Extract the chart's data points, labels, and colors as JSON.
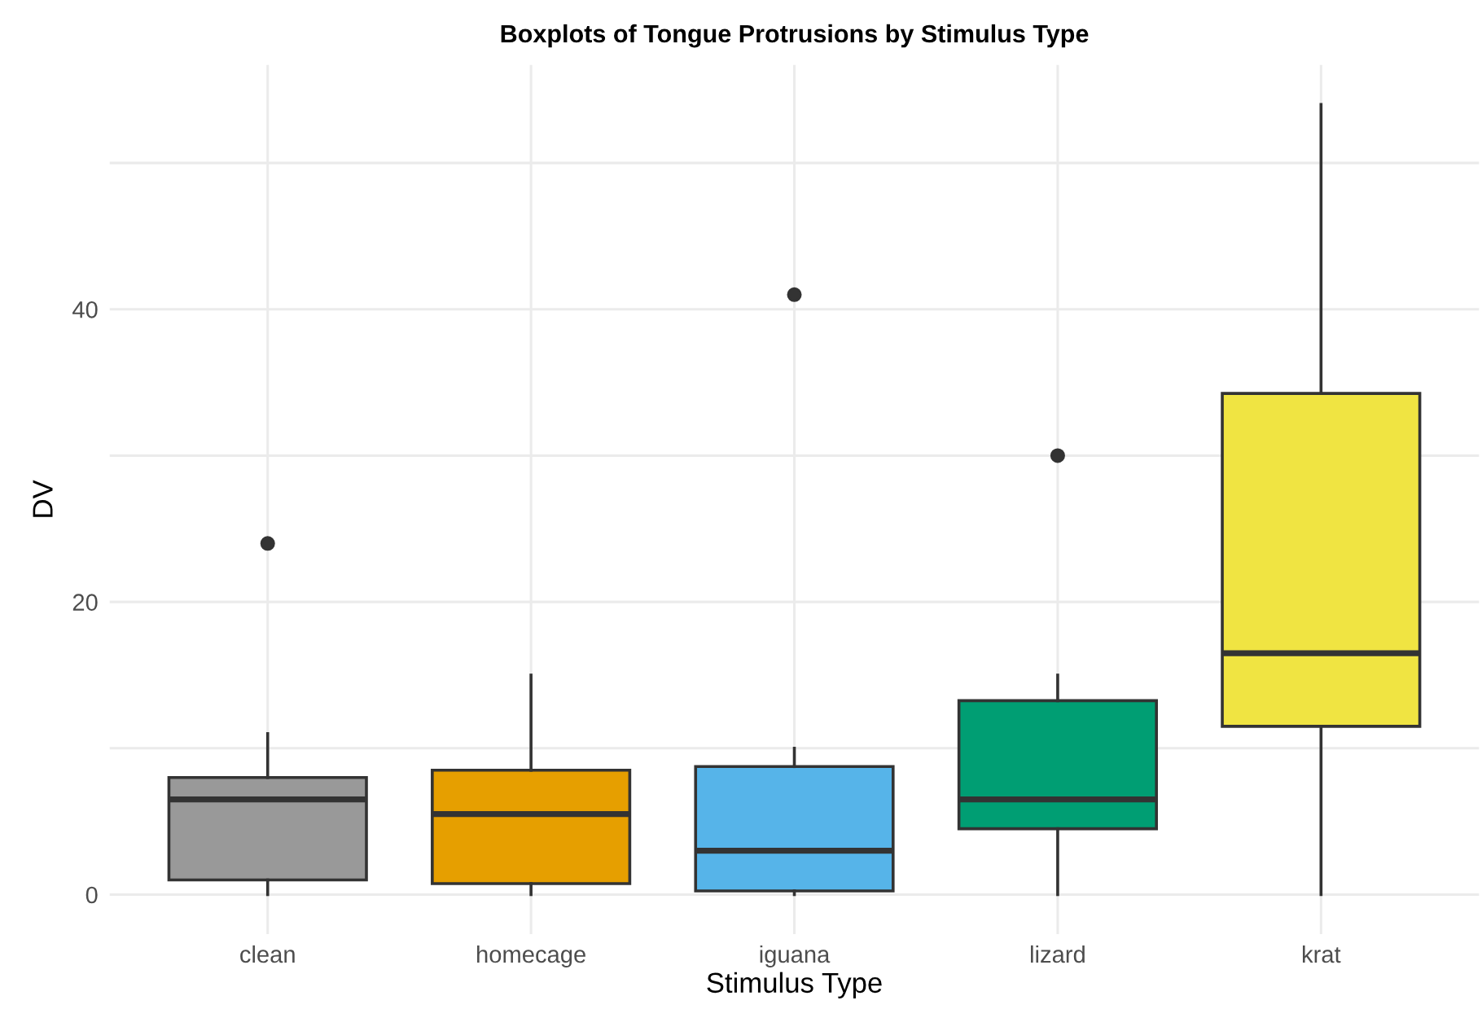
{
  "chart_data": {
    "type": "box",
    "title": "Boxplots of Tongue Protrusions by Stimulus Type",
    "xlabel": "Stimulus Type",
    "ylabel": "DV",
    "categories": [
      "clean",
      "homecage",
      "iguana",
      "lizard",
      "krat"
    ],
    "boxes": [
      {
        "low": 0,
        "q1": 1,
        "median": 6.5,
        "q3": 8,
        "high": 11,
        "outliers": [
          24
        ]
      },
      {
        "low": 0,
        "q1": 0.75,
        "median": 5.5,
        "q3": 8.5,
        "high": 15
      },
      {
        "low": 0,
        "q1": 0.25,
        "median": 3,
        "q3": 8.75,
        "high": 10,
        "outliers": [
          41
        ]
      },
      {
        "low": 0,
        "q1": 4.5,
        "median": 6.5,
        "q3": 13.25,
        "high": 15,
        "outliers": [
          30
        ]
      },
      {
        "low": 0,
        "q1": 11.5,
        "median": 16.5,
        "q3": 34.25,
        "high": 54
      }
    ],
    "colors": [
      "#999999",
      "#e69f00",
      "#56b4e9",
      "#009e73",
      "#f0e442"
    ],
    "ylim": [
      -2.7,
      56.7
    ],
    "yticks": [
      0,
      {
        "value": 10,
        "label": null
      },
      20,
      {
        "value": 30,
        "label": null
      },
      40,
      {
        "value": 50,
        "label": null
      }
    ],
    "grid": true
  }
}
